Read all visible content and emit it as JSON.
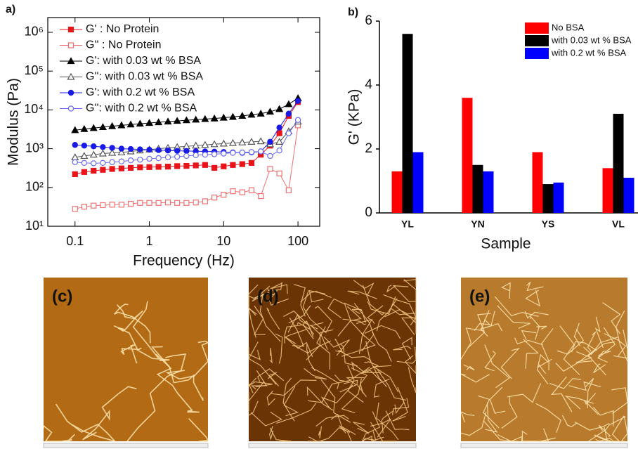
{
  "chart_data": [
    {
      "type": "line",
      "panel": "a)",
      "xlabel": "Frequency (Hz)",
      "ylabel": "Modulus (Pa)",
      "xscale": "log",
      "yscale": "log",
      "xlim": [
        0.043,
        196
      ],
      "ylim": [
        10,
        2400000
      ],
      "xticks": [
        0.1,
        1,
        10,
        100
      ],
      "yticks": [
        {
          "value": 10,
          "label": "10¹"
        },
        {
          "value": 100,
          "label": "10²"
        },
        {
          "value": 1000,
          "label": "10³"
        },
        {
          "value": 10000,
          "label": "10⁴"
        },
        {
          "value": 100000,
          "label": "10⁵"
        },
        {
          "value": 1000000,
          "label": "10⁶"
        }
      ],
      "legend": "upper-left",
      "x": [
        0.1,
        0.133,
        0.178,
        0.237,
        0.316,
        0.422,
        0.562,
        0.75,
        1,
        1.33,
        1.78,
        2.37,
        3.16,
        4.22,
        5.62,
        7.5,
        10,
        13.3,
        17.8,
        23.7,
        31.6,
        42.2,
        56.2,
        75,
        100
      ],
      "series": [
        {
          "name": "G' : No Protein",
          "color": "#e8141a",
          "marker": "square",
          "filled": true,
          "values": [
            220,
            250,
            270,
            285,
            300,
            310,
            320,
            330,
            335,
            340,
            345,
            355,
            360,
            370,
            380,
            320,
            350,
            380,
            400,
            430,
            700,
            1200,
            2500,
            7000,
            16000
          ]
        },
        {
          "name": "G'' : No Protein",
          "color": "#f07070",
          "marker": "square",
          "filled": false,
          "values": [
            28,
            32,
            34,
            35,
            36,
            36,
            38,
            40,
            40,
            40,
            41,
            40,
            40,
            41,
            44,
            55,
            65,
            80,
            75,
            85,
            60,
            300,
            230,
            85,
            4000
          ]
        },
        {
          "name": "G': with 0.03 wt % BSA",
          "color": "#000000",
          "marker": "triangle",
          "filled": true,
          "values": [
            3000,
            3200,
            3400,
            3600,
            3800,
            4000,
            4200,
            4400,
            4600,
            4800,
            5000,
            5200,
            5400,
            5600,
            5800,
            6000,
            6300,
            6600,
            7000,
            7500,
            8000,
            9000,
            10500,
            14000,
            20000
          ]
        },
        {
          "name": "G'': with 0.03 wt % BSA",
          "color": "#555555",
          "marker": "triangle",
          "filled": false,
          "values": [
            600,
            650,
            700,
            750,
            780,
            800,
            850,
            900,
            950,
            1000,
            1050,
            1100,
            1150,
            1200,
            1250,
            1300,
            1350,
            1400,
            1450,
            1500,
            1550,
            1300,
            1500,
            2800,
            5000
          ]
        },
        {
          "name": "G': with 0.2 wt % BSA",
          "color": "#1a1ae6",
          "marker": "circle",
          "filled": true,
          "values": [
            1250,
            1200,
            1150,
            1100,
            1050,
            1000,
            980,
            960,
            940,
            920,
            900,
            880,
            870,
            860,
            850,
            840,
            820,
            800,
            780,
            800,
            850,
            1500,
            3500,
            8000,
            17000
          ]
        },
        {
          "name": "G'': with 0.2 wt % BSA",
          "color": "#6a6af0",
          "marker": "circle",
          "filled": false,
          "values": [
            450,
            430,
            420,
            430,
            450,
            470,
            500,
            520,
            550,
            570,
            600,
            620,
            650,
            680,
            700,
            720,
            750,
            780,
            800,
            820,
            850,
            650,
            900,
            2500,
            5500
          ]
        }
      ]
    },
    {
      "type": "bar",
      "panel": "b)",
      "xlabel": "Sample",
      "ylabel": "G' (KPa)",
      "legend": "upper-right",
      "ylim": [
        0,
        6
      ],
      "yticks": [
        0,
        2,
        4,
        6
      ],
      "categories": [
        "YL",
        "YN",
        "YS",
        "VL"
      ],
      "series": [
        {
          "name": "No BSA",
          "color": "#ff0000",
          "values": [
            1.3,
            3.6,
            1.9,
            1.4
          ]
        },
        {
          "name": "with 0.03 wt % BSA",
          "color": "#000000",
          "values": [
            5.6,
            1.5,
            0.9,
            3.1
          ]
        },
        {
          "name": "with 0.2 wt % BSA",
          "color": "#0000ff",
          "values": [
            1.9,
            1.3,
            0.95,
            1.1
          ]
        }
      ]
    }
  ],
  "images": [
    {
      "label": "(c)"
    },
    {
      "label": "(d)"
    },
    {
      "label": "(e)"
    }
  ]
}
